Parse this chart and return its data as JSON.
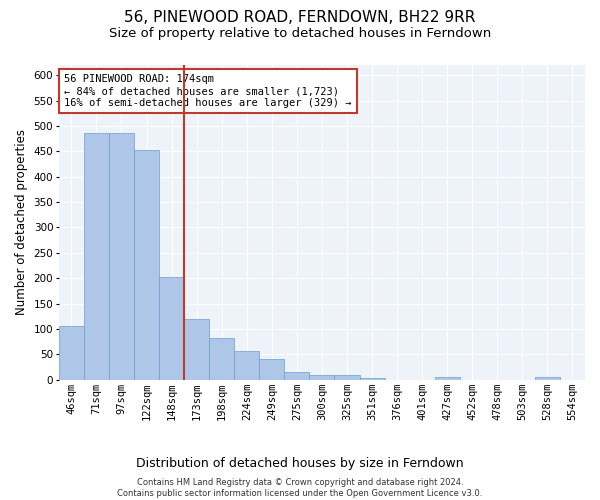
{
  "title": "56, PINEWOOD ROAD, FERNDOWN, BH22 9RR",
  "subtitle": "Size of property relative to detached houses in Ferndown",
  "xlabel": "Distribution of detached houses by size in Ferndown",
  "ylabel": "Number of detached properties",
  "categories": [
    "46sqm",
    "71sqm",
    "97sqm",
    "122sqm",
    "148sqm",
    "173sqm",
    "198sqm",
    "224sqm",
    "249sqm",
    "275sqm",
    "300sqm",
    "325sqm",
    "351sqm",
    "376sqm",
    "401sqm",
    "427sqm",
    "452sqm",
    "478sqm",
    "503sqm",
    "528sqm",
    "554sqm"
  ],
  "values": [
    105,
    487,
    487,
    452,
    203,
    120,
    82,
    56,
    40,
    15,
    10,
    10,
    3,
    0,
    0,
    5,
    0,
    0,
    0,
    6,
    0
  ],
  "bar_color": "#aec6e8",
  "bar_edge_color": "#6b9fc8",
  "vline_color": "#c0392b",
  "annotation_line1": "56 PINEWOOD ROAD: 174sqm",
  "annotation_line2": "← 84% of detached houses are smaller (1,723)",
  "annotation_line3": "16% of semi-detached houses are larger (329) →",
  "annotation_box_color": "white",
  "annotation_box_edge_color": "#c0392b",
  "footer_line1": "Contains HM Land Registry data © Crown copyright and database right 2024.",
  "footer_line2": "Contains public sector information licensed under the Open Government Licence v3.0.",
  "ylim": [
    0,
    620
  ],
  "vline_bin_index": 5,
  "title_fontsize": 11,
  "subtitle_fontsize": 9.5,
  "tick_fontsize": 7.5,
  "ylabel_fontsize": 8.5,
  "xlabel_fontsize": 9,
  "annotation_fontsize": 7.5,
  "footer_fontsize": 6,
  "background_color": "#eef2f9"
}
